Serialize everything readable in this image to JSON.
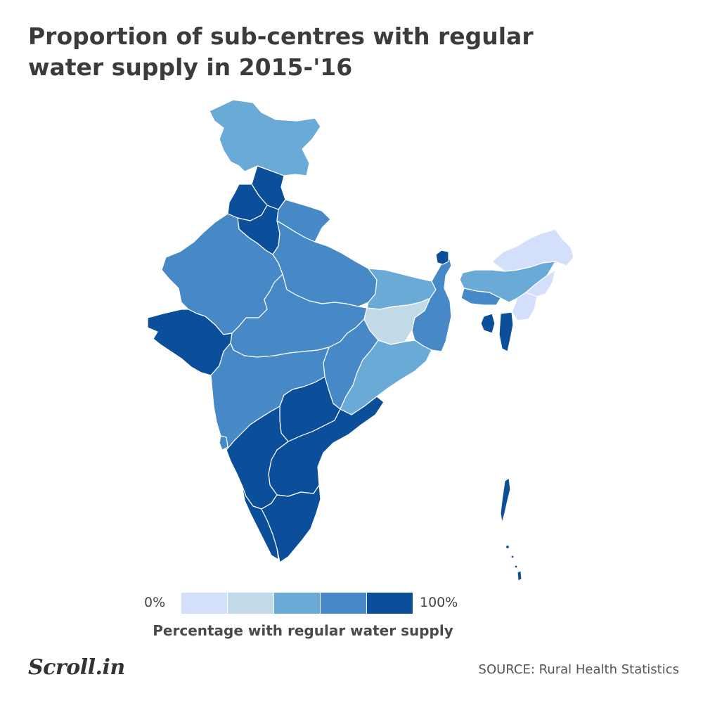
{
  "title": "Proportion of sub-centres with regular water supply in 2015-'16",
  "legend": {
    "min_label": "0%",
    "max_label": "100%",
    "caption": "Percentage with regular water supply",
    "colors": [
      "#d4e0fb",
      "#c2d9e7",
      "#6aaad6",
      "#4689c6",
      "#0b4f9b"
    ]
  },
  "source": "SOURCE: Rural Health Statistics",
  "logo": "Scroll.in",
  "map_colors": {
    "border": "#ffffff"
  }
}
